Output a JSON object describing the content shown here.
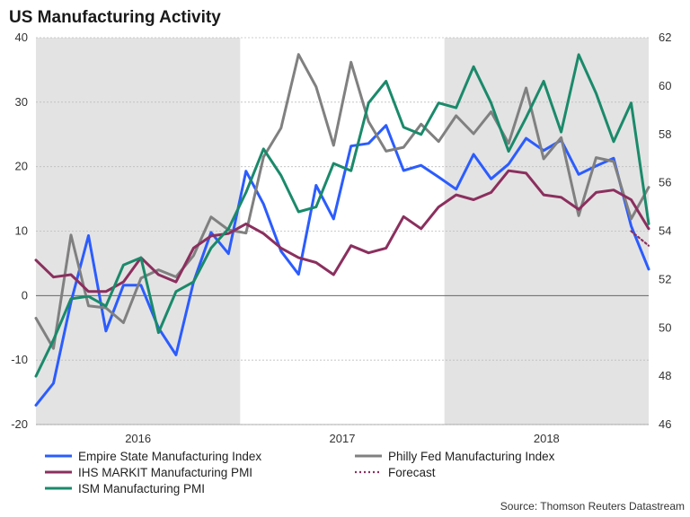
{
  "chart_data": {
    "type": "line",
    "title": "US Manufacturing Activity",
    "source": "Source: Thomson Reuters Datastream",
    "x_labels": [
      "2016",
      "2017",
      "2018"
    ],
    "left_axis": {
      "ylim": [
        -20,
        40
      ],
      "ticks": [
        "-20",
        "-10",
        "0",
        "10",
        "20",
        "30",
        "40"
      ]
    },
    "right_axis": {
      "ylim": [
        46,
        62
      ],
      "ticks": [
        "46",
        "48",
        "50",
        "52",
        "54",
        "56",
        "58",
        "60",
        "62"
      ]
    },
    "months_range": [
      2015.5,
      2018.5
    ],
    "shaded_periods": [
      [
        2015.5,
        2016.5
      ],
      [
        2017.5,
        2018.5
      ]
    ],
    "grid": true,
    "series": [
      {
        "name": "Empire State Manufacturing Index",
        "color": "#2b5cff",
        "axis": "left",
        "values": [
          -17,
          -13.6,
          -1,
          9.3,
          -5.5,
          1.6,
          1.6,
          -5,
          -9.2,
          2.1,
          9.8,
          6.5,
          19.3,
          14.2,
          6.9,
          3.3,
          17.1,
          11.9,
          23.2,
          23.6,
          26.4,
          19.4,
          20.2,
          18.4,
          16.5,
          21.9,
          18.1,
          20.4,
          24.4,
          22.5,
          24.1,
          18.8,
          20.1,
          21.3,
          10.8,
          4.1
        ]
      },
      {
        "name": "Philly Fed Manufacturing Index",
        "color": "#808080",
        "axis": "left",
        "values": [
          -3.5,
          -8.2,
          9.4,
          -1.6,
          -1.9,
          -4.2,
          2.7,
          4,
          2.9,
          6.2,
          12.2,
          10.2,
          9.7,
          21.5,
          26,
          37.4,
          32.4,
          23.3,
          36.2,
          27,
          22.4,
          23,
          26.6,
          23.9,
          27.9,
          25.1,
          28.5,
          23.6,
          32.2,
          21.2,
          24.5,
          12.4,
          21.4,
          20.8,
          11.9,
          16.8
        ]
      },
      {
        "name": "IHS MARKIT Manufacturing PMI",
        "color": "#8b2f5e",
        "axis": "right",
        "values": [
          52.8,
          52.1,
          52.2,
          51.5,
          51.5,
          51.9,
          52.9,
          52.2,
          51.9,
          53.3,
          53.8,
          53.9,
          54.3,
          53.9,
          53.3,
          52.9,
          52.7,
          52.2,
          53.4,
          53.1,
          53.3,
          54.6,
          54.1,
          55,
          55.5,
          55.3,
          55.6,
          56.5,
          56.4,
          55.5,
          55.4,
          54.9,
          55.6,
          55.7,
          55.3,
          54.1
        ]
      },
      {
        "name": "Forecast",
        "color": "#8b2f5e",
        "axis": "right",
        "dashed": true,
        "start_index": 34,
        "values": [
          54,
          53.4
        ]
      },
      {
        "name": "ISM Manufacturing PMI",
        "color": "#1a8a6a",
        "axis": "right",
        "values": [
          48,
          49.5,
          51.2,
          51.3,
          50.9,
          52.6,
          52.9,
          49.8,
          51.5,
          51.9,
          53.3,
          54.1,
          55.6,
          57.4,
          56.3,
          54.8,
          55,
          56.8,
          56.5,
          59.3,
          60.2,
          58.3,
          58,
          59.3,
          59.1,
          60.8,
          59.3,
          57.3,
          58.7,
          60.2,
          58.1,
          61.3,
          59.7,
          57.7,
          59.3,
          54.3
        ]
      }
    ],
    "legend": [
      {
        "label": "Empire State Manufacturing Index",
        "color": "#2b5cff",
        "dashed": false
      },
      {
        "label": "Philly Fed Manufacturing Index",
        "color": "#808080",
        "dashed": false
      },
      {
        "label": "IHS MARKIT Manufacturing PMI",
        "color": "#8b2f5e",
        "dashed": false
      },
      {
        "label": "Forecast",
        "color": "#8b2f5e",
        "dashed": true
      },
      {
        "label": "ISM Manufacturing PMI",
        "color": "#1a8a6a",
        "dashed": false
      }
    ]
  }
}
